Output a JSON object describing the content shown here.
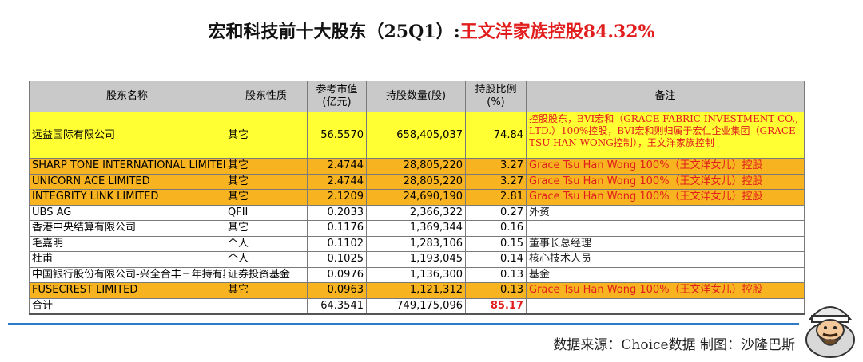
{
  "title": {
    "main": "宏和科技前十大股东（25Q1）:",
    "highlight": "王文洋家族控股84.32%"
  },
  "headers": [
    "股东名称",
    "股东性质",
    "参考市值(亿元)",
    "持股数量(股)",
    "持股比例(%)",
    "备注"
  ],
  "chart_data": {
    "type": "table",
    "columns": [
      "股东名称",
      "股东性质",
      "参考市值(亿元)",
      "持股数量(股)",
      "持股比例(%)",
      "备注"
    ],
    "rows": [
      {
        "name": "远益国际有限公司",
        "nature": "其它",
        "value": "56.5570",
        "shares": "658,405,037",
        "pct": "74.84",
        "note": "控股股东，BVI宏和（GRACE FABRIC INVESTMENT CO., LTD.）100%控股，BVI宏和则归属于宏仁企业集团（GRACE TSU HAN WONG控制），王文洋家族控制",
        "hl": "yellow",
        "note_red": true
      },
      {
        "name": "SHARP TONE INTERNATIONAL LIMITED",
        "nature": "其它",
        "value": "2.4744",
        "shares": "28,805,220",
        "pct": "3.27",
        "note": "Grace Tsu Han Wong 100%（王文洋女儿）控股",
        "hl": "orange",
        "note_red": true
      },
      {
        "name": "UNICORN ACE LIMITED",
        "nature": "其它",
        "value": "2.4744",
        "shares": "28,805,220",
        "pct": "3.27",
        "note": "Grace Tsu Han Wong 100%（王文洋女儿）控股",
        "hl": "orange",
        "note_red": true
      },
      {
        "name": "INTEGRITY LINK LIMITED",
        "nature": "其它",
        "value": "2.1209",
        "shares": "24,690,190",
        "pct": "2.81",
        "note": "Grace Tsu Han Wong 100%（王文洋女儿）控股",
        "hl": "orange",
        "note_red": true
      },
      {
        "name": "UBS AG",
        "nature": "QFII",
        "value": "0.2033",
        "shares": "2,366,322",
        "pct": "0.27",
        "note": "外资",
        "hl": "",
        "note_red": false
      },
      {
        "name": "香港中央结算有限公司",
        "nature": "其它",
        "value": "0.1176",
        "shares": "1,369,344",
        "pct": "0.16",
        "note": "",
        "hl": "",
        "note_red": false
      },
      {
        "name": "毛嘉明",
        "nature": "个人",
        "value": "0.1102",
        "shares": "1,283,106",
        "pct": "0.15",
        "note": "董事长总经理",
        "hl": "",
        "note_red": false
      },
      {
        "name": "杜甫",
        "nature": "个人",
        "value": "0.1025",
        "shares": "1,193,045",
        "pct": "0.14",
        "note": "核心技术人员",
        "hl": "",
        "note_red": false
      },
      {
        "name": "中国银行股份有限公司-兴全合丰三年持有期混合型证券投资基金",
        "nature": "证券投资基金",
        "value": "0.0976",
        "shares": "1,136,300",
        "pct": "0.13",
        "note": "基金",
        "hl": "",
        "note_red": false
      },
      {
        "name": "FUSECREST LIMITED",
        "nature": "其它",
        "value": "0.0963",
        "shares": "1,121,312",
        "pct": "0.13",
        "note": "Grace Tsu Han Wong 100%（王文洋女儿）控股",
        "hl": "orange",
        "note_red": true
      }
    ],
    "total": {
      "name": "合计",
      "nature": "",
      "value": "64.3541",
      "shares": "749,175,096",
      "pct": "85.17",
      "note": ""
    }
  },
  "footer": {
    "source": "数据来源：Choice数据 制图：沙隆巴斯"
  },
  "colors": {
    "yellow": "#ffff33",
    "orange": "#f7b320",
    "header": "#c9c9c9",
    "accent_red": "#e11d1d",
    "rule_blue": "#2f7ac7"
  },
  "mascot_icon": "bearded-man-mascot-icon"
}
